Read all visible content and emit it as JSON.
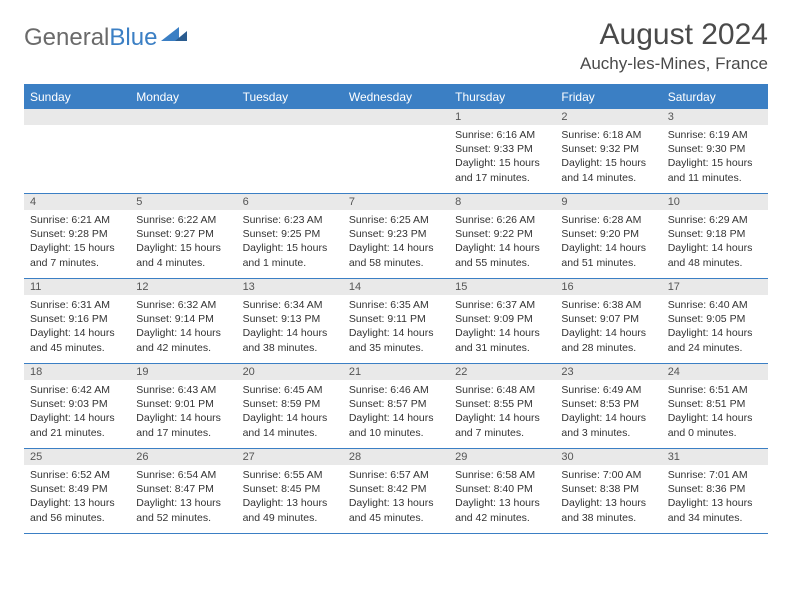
{
  "logo": {
    "text1": "General",
    "text2": "Blue"
  },
  "title": "August 2024",
  "location": "Auchy-les-Mines, France",
  "colors": {
    "accent": "#3b7fc4",
    "header_text": "#ffffff",
    "daynum_bg": "#e9e9e9",
    "text": "#333333",
    "logo_gray": "#6a6a6a"
  },
  "weekdays": [
    "Sunday",
    "Monday",
    "Tuesday",
    "Wednesday",
    "Thursday",
    "Friday",
    "Saturday"
  ],
  "weeks": [
    [
      {
        "n": "",
        "lines": []
      },
      {
        "n": "",
        "lines": []
      },
      {
        "n": "",
        "lines": []
      },
      {
        "n": "",
        "lines": []
      },
      {
        "n": "1",
        "lines": [
          "Sunrise: 6:16 AM",
          "Sunset: 9:33 PM",
          "Daylight: 15 hours",
          "and 17 minutes."
        ]
      },
      {
        "n": "2",
        "lines": [
          "Sunrise: 6:18 AM",
          "Sunset: 9:32 PM",
          "Daylight: 15 hours",
          "and 14 minutes."
        ]
      },
      {
        "n": "3",
        "lines": [
          "Sunrise: 6:19 AM",
          "Sunset: 9:30 PM",
          "Daylight: 15 hours",
          "and 11 minutes."
        ]
      }
    ],
    [
      {
        "n": "4",
        "lines": [
          "Sunrise: 6:21 AM",
          "Sunset: 9:28 PM",
          "Daylight: 15 hours",
          "and 7 minutes."
        ]
      },
      {
        "n": "5",
        "lines": [
          "Sunrise: 6:22 AM",
          "Sunset: 9:27 PM",
          "Daylight: 15 hours",
          "and 4 minutes."
        ]
      },
      {
        "n": "6",
        "lines": [
          "Sunrise: 6:23 AM",
          "Sunset: 9:25 PM",
          "Daylight: 15 hours",
          "and 1 minute."
        ]
      },
      {
        "n": "7",
        "lines": [
          "Sunrise: 6:25 AM",
          "Sunset: 9:23 PM",
          "Daylight: 14 hours",
          "and 58 minutes."
        ]
      },
      {
        "n": "8",
        "lines": [
          "Sunrise: 6:26 AM",
          "Sunset: 9:22 PM",
          "Daylight: 14 hours",
          "and 55 minutes."
        ]
      },
      {
        "n": "9",
        "lines": [
          "Sunrise: 6:28 AM",
          "Sunset: 9:20 PM",
          "Daylight: 14 hours",
          "and 51 minutes."
        ]
      },
      {
        "n": "10",
        "lines": [
          "Sunrise: 6:29 AM",
          "Sunset: 9:18 PM",
          "Daylight: 14 hours",
          "and 48 minutes."
        ]
      }
    ],
    [
      {
        "n": "11",
        "lines": [
          "Sunrise: 6:31 AM",
          "Sunset: 9:16 PM",
          "Daylight: 14 hours",
          "and 45 minutes."
        ]
      },
      {
        "n": "12",
        "lines": [
          "Sunrise: 6:32 AM",
          "Sunset: 9:14 PM",
          "Daylight: 14 hours",
          "and 42 minutes."
        ]
      },
      {
        "n": "13",
        "lines": [
          "Sunrise: 6:34 AM",
          "Sunset: 9:13 PM",
          "Daylight: 14 hours",
          "and 38 minutes."
        ]
      },
      {
        "n": "14",
        "lines": [
          "Sunrise: 6:35 AM",
          "Sunset: 9:11 PM",
          "Daylight: 14 hours",
          "and 35 minutes."
        ]
      },
      {
        "n": "15",
        "lines": [
          "Sunrise: 6:37 AM",
          "Sunset: 9:09 PM",
          "Daylight: 14 hours",
          "and 31 minutes."
        ]
      },
      {
        "n": "16",
        "lines": [
          "Sunrise: 6:38 AM",
          "Sunset: 9:07 PM",
          "Daylight: 14 hours",
          "and 28 minutes."
        ]
      },
      {
        "n": "17",
        "lines": [
          "Sunrise: 6:40 AM",
          "Sunset: 9:05 PM",
          "Daylight: 14 hours",
          "and 24 minutes."
        ]
      }
    ],
    [
      {
        "n": "18",
        "lines": [
          "Sunrise: 6:42 AM",
          "Sunset: 9:03 PM",
          "Daylight: 14 hours",
          "and 21 minutes."
        ]
      },
      {
        "n": "19",
        "lines": [
          "Sunrise: 6:43 AM",
          "Sunset: 9:01 PM",
          "Daylight: 14 hours",
          "and 17 minutes."
        ]
      },
      {
        "n": "20",
        "lines": [
          "Sunrise: 6:45 AM",
          "Sunset: 8:59 PM",
          "Daylight: 14 hours",
          "and 14 minutes."
        ]
      },
      {
        "n": "21",
        "lines": [
          "Sunrise: 6:46 AM",
          "Sunset: 8:57 PM",
          "Daylight: 14 hours",
          "and 10 minutes."
        ]
      },
      {
        "n": "22",
        "lines": [
          "Sunrise: 6:48 AM",
          "Sunset: 8:55 PM",
          "Daylight: 14 hours",
          "and 7 minutes."
        ]
      },
      {
        "n": "23",
        "lines": [
          "Sunrise: 6:49 AM",
          "Sunset: 8:53 PM",
          "Daylight: 14 hours",
          "and 3 minutes."
        ]
      },
      {
        "n": "24",
        "lines": [
          "Sunrise: 6:51 AM",
          "Sunset: 8:51 PM",
          "Daylight: 14 hours",
          "and 0 minutes."
        ]
      }
    ],
    [
      {
        "n": "25",
        "lines": [
          "Sunrise: 6:52 AM",
          "Sunset: 8:49 PM",
          "Daylight: 13 hours",
          "and 56 minutes."
        ]
      },
      {
        "n": "26",
        "lines": [
          "Sunrise: 6:54 AM",
          "Sunset: 8:47 PM",
          "Daylight: 13 hours",
          "and 52 minutes."
        ]
      },
      {
        "n": "27",
        "lines": [
          "Sunrise: 6:55 AM",
          "Sunset: 8:45 PM",
          "Daylight: 13 hours",
          "and 49 minutes."
        ]
      },
      {
        "n": "28",
        "lines": [
          "Sunrise: 6:57 AM",
          "Sunset: 8:42 PM",
          "Daylight: 13 hours",
          "and 45 minutes."
        ]
      },
      {
        "n": "29",
        "lines": [
          "Sunrise: 6:58 AM",
          "Sunset: 8:40 PM",
          "Daylight: 13 hours",
          "and 42 minutes."
        ]
      },
      {
        "n": "30",
        "lines": [
          "Sunrise: 7:00 AM",
          "Sunset: 8:38 PM",
          "Daylight: 13 hours",
          "and 38 minutes."
        ]
      },
      {
        "n": "31",
        "lines": [
          "Sunrise: 7:01 AM",
          "Sunset: 8:36 PM",
          "Daylight: 13 hours",
          "and 34 minutes."
        ]
      }
    ]
  ]
}
